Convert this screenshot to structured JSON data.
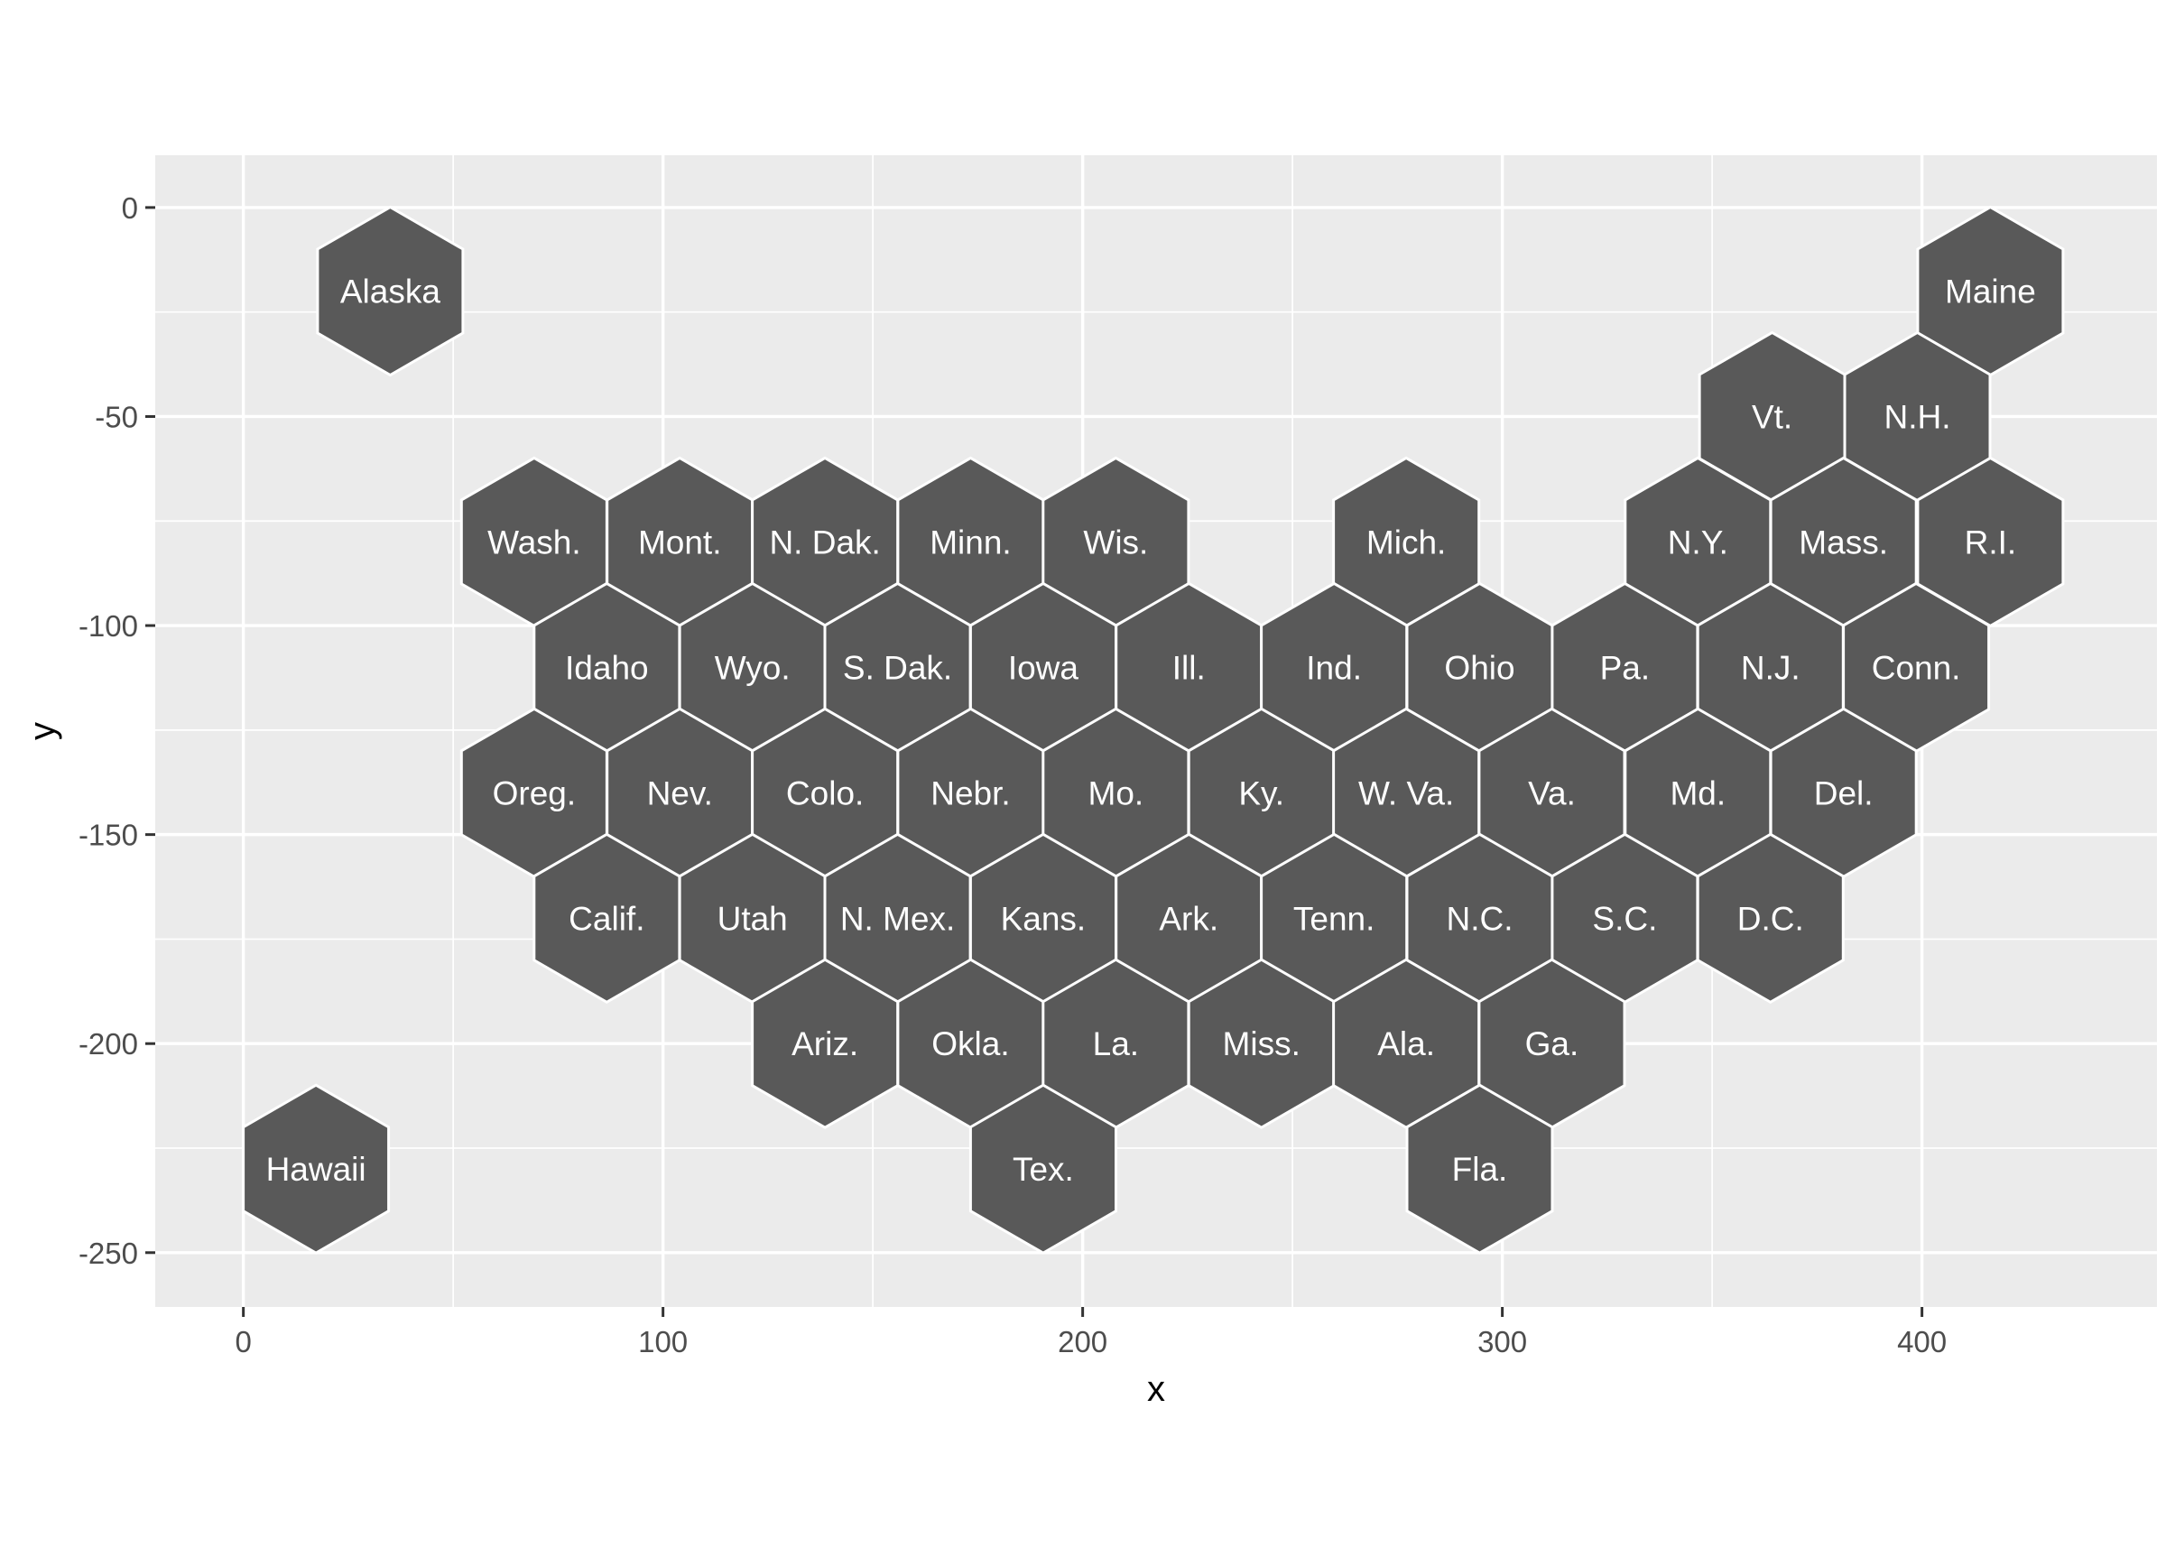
{
  "chart_data": {
    "type": "hexbin-map",
    "title": "",
    "xlabel": "x",
    "ylabel": "y",
    "xlim": [
      -21,
      456
    ],
    "ylim": [
      -263,
      12.5
    ],
    "x_ticks": [
      0,
      100,
      200,
      300,
      400
    ],
    "x_tick_labels": [
      "0",
      "100",
      "200",
      "300",
      "400"
    ],
    "y_ticks": [
      0,
      -50,
      -100,
      -150,
      -200,
      -250
    ],
    "y_tick_labels": [
      "0",
      "-50",
      "-100",
      "-150",
      "-200",
      "-250"
    ],
    "grid": true,
    "legend": "none",
    "colors": {
      "panel": "#EBEBEB",
      "hex_fill": "#595959",
      "hex_border": "#FFFFFF",
      "label": "#FFFFFF"
    },
    "points": [
      {
        "label": "Alaska",
        "x": 35,
        "y": -20
      },
      {
        "label": "Maine",
        "x": 416.3,
        "y": -20
      },
      {
        "label": "Vt.",
        "x": 364.3,
        "y": -50
      },
      {
        "label": "N.H.",
        "x": 398.9,
        "y": -50
      },
      {
        "label": "Wash.",
        "x": 69.3,
        "y": -80
      },
      {
        "label": "Mont.",
        "x": 104,
        "y": -80
      },
      {
        "label": "N. Dak.",
        "x": 138.6,
        "y": -80
      },
      {
        "label": "Minn.",
        "x": 173.3,
        "y": -80
      },
      {
        "label": "Wis.",
        "x": 207.9,
        "y": -80
      },
      {
        "label": "Mich.",
        "x": 277.1,
        "y": -80
      },
      {
        "label": "N.Y.",
        "x": 346.6,
        "y": -80
      },
      {
        "label": "Mass.",
        "x": 381.3,
        "y": -80
      },
      {
        "label": "R.I.",
        "x": 416.3,
        "y": -80
      },
      {
        "label": "Idaho",
        "x": 86.6,
        "y": -110
      },
      {
        "label": "Wyo.",
        "x": 121.3,
        "y": -110
      },
      {
        "label": "S. Dak.",
        "x": 155.9,
        "y": -110
      },
      {
        "label": "Iowa",
        "x": 190.6,
        "y": -110
      },
      {
        "label": "Ill.",
        "x": 225.3,
        "y": -110
      },
      {
        "label": "Ind.",
        "x": 259.9,
        "y": -110
      },
      {
        "label": "Ohio",
        "x": 294.6,
        "y": -110
      },
      {
        "label": "Pa.",
        "x": 329.2,
        "y": -110
      },
      {
        "label": "N.J.",
        "x": 363.9,
        "y": -110
      },
      {
        "label": "Conn.",
        "x": 398.6,
        "y": -110
      },
      {
        "label": "Oreg.",
        "x": 69.3,
        "y": -140
      },
      {
        "label": "Nev.",
        "x": 104,
        "y": -140
      },
      {
        "label": "Colo.",
        "x": 138.6,
        "y": -140
      },
      {
        "label": "Nebr.",
        "x": 173.3,
        "y": -140
      },
      {
        "label": "Mo.",
        "x": 207.9,
        "y": -140
      },
      {
        "label": "Ky.",
        "x": 242.6,
        "y": -140
      },
      {
        "label": "W. Va.",
        "x": 277.1,
        "y": -140
      },
      {
        "label": "Va.",
        "x": 311.8,
        "y": -140
      },
      {
        "label": "Md.",
        "x": 346.6,
        "y": -140
      },
      {
        "label": "Del.",
        "x": 381.3,
        "y": -140
      },
      {
        "label": "Calif.",
        "x": 86.6,
        "y": -170
      },
      {
        "label": "Utah",
        "x": 121.3,
        "y": -170
      },
      {
        "label": "N. Mex.",
        "x": 155.9,
        "y": -170
      },
      {
        "label": "Kans.",
        "x": 190.6,
        "y": -170
      },
      {
        "label": "Ark.",
        "x": 225.3,
        "y": -170
      },
      {
        "label": "Tenn.",
        "x": 259.9,
        "y": -170
      },
      {
        "label": "N.C.",
        "x": 294.6,
        "y": -170
      },
      {
        "label": "S.C.",
        "x": 329.2,
        "y": -170
      },
      {
        "label": "D.C.",
        "x": 363.9,
        "y": -170
      },
      {
        "label": "Ariz.",
        "x": 138.6,
        "y": -200
      },
      {
        "label": "Okla.",
        "x": 173.3,
        "y": -200
      },
      {
        "label": "La.",
        "x": 207.9,
        "y": -200
      },
      {
        "label": "Miss.",
        "x": 242.6,
        "y": -200
      },
      {
        "label": "Ala.",
        "x": 277.1,
        "y": -200
      },
      {
        "label": "Ga.",
        "x": 311.8,
        "y": -200
      },
      {
        "label": "Hawaii",
        "x": 17.3,
        "y": -230
      },
      {
        "label": "Tex.",
        "x": 190.6,
        "y": -230
      },
      {
        "label": "Fla.",
        "x": 294.6,
        "y": -230
      }
    ]
  }
}
